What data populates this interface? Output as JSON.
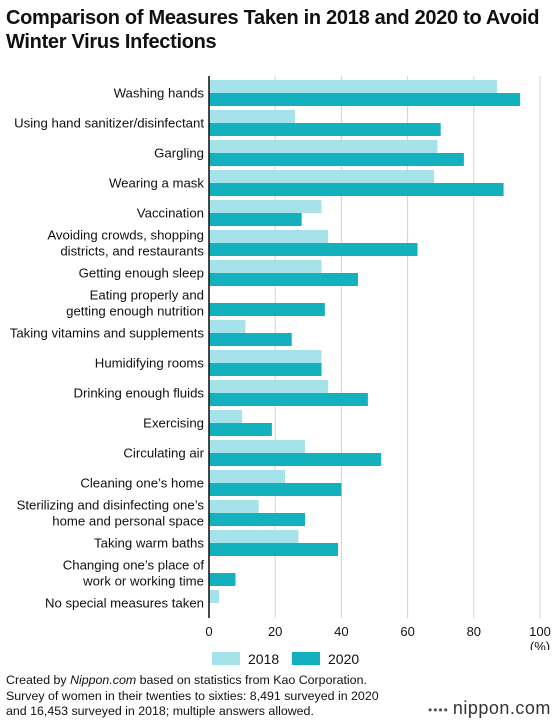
{
  "title": "Comparison of Measures Taken in 2018 and 2020 to Avoid Winter Virus Infections",
  "chart_data": {
    "type": "bar",
    "orientation": "horizontal",
    "title": "Comparison of Measures Taken in 2018 and 2020 to Avoid Winter Virus Infections",
    "xunit": "(%)",
    "xlim": [
      0,
      100
    ],
    "xticks": [
      0,
      20,
      40,
      60,
      80,
      100
    ],
    "grid": true,
    "legend_position": "bottom",
    "categories": [
      [
        "Washing hands"
      ],
      [
        "Using hand sanitizer/disinfectant"
      ],
      [
        "Gargling"
      ],
      [
        "Wearing a mask"
      ],
      [
        "Vaccination"
      ],
      [
        "Avoiding crowds, shopping",
        "districts, and restaurants"
      ],
      [
        "Getting enough sleep"
      ],
      [
        "Eating properly and",
        "getting enough nutrition"
      ],
      [
        "Taking vitamins and supplements"
      ],
      [
        "Humidifying rooms"
      ],
      [
        "Drinking enough fluids"
      ],
      [
        "Exercising"
      ],
      [
        "Circulating air"
      ],
      [
        "Cleaning one’s home"
      ],
      [
        "Sterilizing and disinfecting one’s",
        "home and personal space"
      ],
      [
        "Taking warm baths"
      ],
      [
        "Changing one’s place of",
        "work or working time"
      ],
      [
        "No special measures taken"
      ]
    ],
    "series": [
      {
        "name": "2018",
        "color": "#a6e2ea",
        "values": [
          87,
          26,
          69,
          68,
          34,
          36,
          34,
          0,
          11,
          34,
          36,
          10,
          29,
          23,
          15,
          27,
          0,
          3
        ]
      },
      {
        "name": "2020",
        "color": "#13b1bd",
        "values": [
          94,
          70,
          77,
          89,
          28,
          63,
          45,
          35,
          25,
          34,
          48,
          19,
          52,
          40,
          29,
          39,
          8,
          0
        ]
      }
    ]
  },
  "footer": {
    "line1_prefix": "Created by ",
    "line1_source": "Nippon.com",
    "line1_suffix": " based on statistics from Kao Corporation.",
    "line2": "Survey of women in their twenties to sixties: 8,491 surveyed in 2020",
    "line3": "and 16,453 surveyed in 2018; multiple answers allowed."
  },
  "brand": {
    "dots": "••••",
    "name": "nippon",
    "suffix": ".com"
  }
}
